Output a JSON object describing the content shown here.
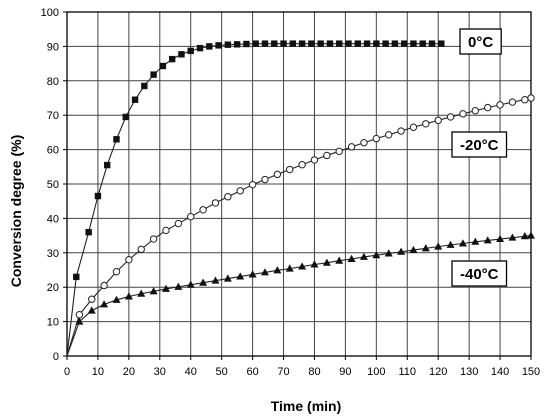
{
  "chart_data": {
    "type": "line",
    "xlabel": "Time (min)",
    "ylabel": "Conversion degree (%)",
    "xlim": [
      0,
      150
    ],
    "ylim": [
      0,
      100
    ],
    "x_ticks": [
      0,
      10,
      20,
      30,
      40,
      50,
      60,
      70,
      80,
      90,
      100,
      110,
      120,
      130,
      140,
      150
    ],
    "y_ticks": [
      0,
      10,
      20,
      30,
      40,
      50,
      60,
      70,
      80,
      90,
      100
    ],
    "grid": true,
    "series": [
      {
        "name": "0°C",
        "marker": "square",
        "x": [
          0,
          3,
          7,
          10,
          13,
          16,
          19,
          22,
          25,
          28,
          31,
          34,
          37,
          40,
          43,
          46,
          49,
          52,
          55,
          58,
          61,
          64,
          67,
          70,
          73,
          76,
          79,
          82,
          85,
          88,
          91,
          94,
          97,
          100,
          103,
          106,
          109,
          112,
          115,
          118,
          121
        ],
        "y": [
          0,
          23,
          36,
          46.5,
          55.5,
          63,
          69.5,
          74.5,
          78.5,
          81.8,
          84.3,
          86.3,
          87.7,
          88.7,
          89.5,
          90,
          90.3,
          90.5,
          90.6,
          90.7,
          90.8,
          90.8,
          90.8,
          90.8,
          90.8,
          90.8,
          90.8,
          90.8,
          90.8,
          90.8,
          90.8,
          90.8,
          90.8,
          90.8,
          90.8,
          90.8,
          90.8,
          90.8,
          90.8,
          90.8,
          90.8
        ],
        "label_pos": "right-top"
      },
      {
        "name": "-20°C",
        "marker": "circle",
        "x": [
          0,
          4,
          8,
          12,
          16,
          20,
          24,
          28,
          32,
          36,
          40,
          44,
          48,
          52,
          56,
          60,
          64,
          68,
          72,
          76,
          80,
          84,
          88,
          92,
          96,
          100,
          104,
          108,
          112,
          116,
          120,
          124,
          128,
          132,
          136,
          140,
          144,
          148,
          150
        ],
        "y": [
          0,
          12,
          16.5,
          20.5,
          24.5,
          28,
          31,
          34,
          36.5,
          38.5,
          40.5,
          42.5,
          44.5,
          46.3,
          48,
          49.8,
          51.3,
          52.8,
          54.2,
          55.6,
          57,
          58.3,
          59.5,
          60.8,
          62,
          63.2,
          64.3,
          65.4,
          66.5,
          67.5,
          68.5,
          69.5,
          70.4,
          71.3,
          72.2,
          73,
          73.8,
          74.5,
          75
        ],
        "label_pos": "right-middle"
      },
      {
        "name": "-40°C",
        "marker": "triangle",
        "x": [
          0,
          4,
          8,
          12,
          16,
          20,
          24,
          28,
          32,
          36,
          40,
          44,
          48,
          52,
          56,
          60,
          64,
          68,
          72,
          76,
          80,
          84,
          88,
          92,
          96,
          100,
          104,
          108,
          112,
          116,
          120,
          124,
          128,
          132,
          136,
          140,
          144,
          148,
          150
        ],
        "y": [
          0,
          10,
          13.2,
          15,
          16.3,
          17.3,
          18.1,
          18.8,
          19.5,
          20.1,
          20.7,
          21.3,
          21.9,
          22.5,
          23.1,
          23.7,
          24.3,
          24.9,
          25.4,
          26,
          26.6,
          27.1,
          27.7,
          28.2,
          28.8,
          29.3,
          29.8,
          30.3,
          30.8,
          31.3,
          31.8,
          32.3,
          32.7,
          33.2,
          33.6,
          34,
          34.4,
          34.8,
          35
        ],
        "label_pos": "right-lower"
      }
    ]
  }
}
